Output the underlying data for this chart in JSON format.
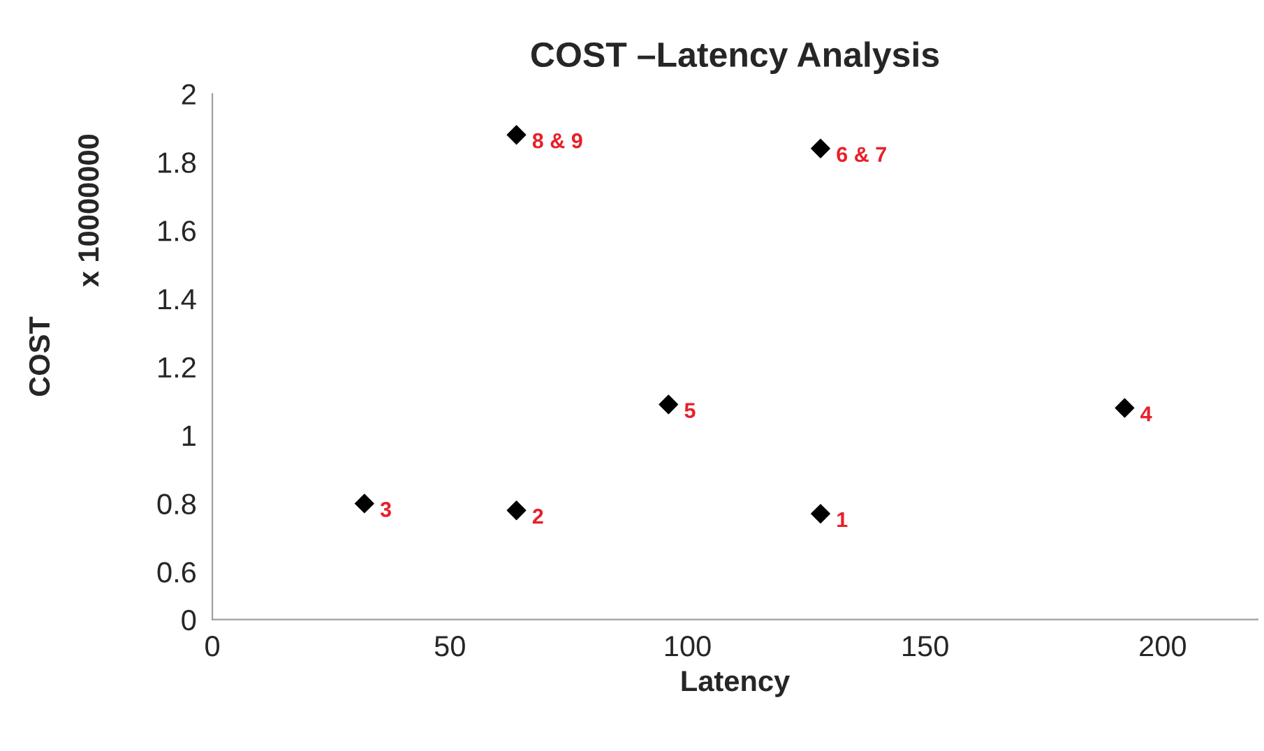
{
  "chart_data": {
    "type": "scatter",
    "title": "COST –Latency Analysis",
    "xlabel": "Latency",
    "ylabel": "COST",
    "x": [
      64,
      128,
      96,
      192,
      32,
      64,
      128
    ],
    "series": [
      {
        "color": "#000000",
        "values": [
          1.88,
          1.84,
          1.09,
          1.08,
          0.8,
          0.78,
          0.77
        ]
      }
    ],
    "marker": "diamond",
    "grid": false,
    "legend": false,
    "xlim": [
      0,
      220
    ],
    "xticks": [
      0,
      50,
      100,
      150,
      200
    ],
    "ylim": [
      0.46,
      2
    ],
    "yticks": [
      {
        "value": 0.46,
        "label": "0"
      },
      0.6,
      0.8,
      1,
      1.2,
      1.4,
      1.6,
      1.8,
      2
    ],
    "annotations": [
      "x 10000000",
      {
        "text": "8 & 9",
        "x": 64,
        "y": 1.88
      },
      {
        "text": "6 & 7",
        "x": 128,
        "y": 1.84
      },
      {
        "text": "5",
        "x": 96,
        "y": 1.09
      },
      {
        "text": "4",
        "x": 192,
        "y": 1.08
      },
      {
        "text": "3",
        "x": 32,
        "y": 0.8
      },
      {
        "text": "2",
        "x": 64,
        "y": 0.78
      },
      {
        "text": "1",
        "x": 128,
        "y": 0.77
      }
    ]
  }
}
